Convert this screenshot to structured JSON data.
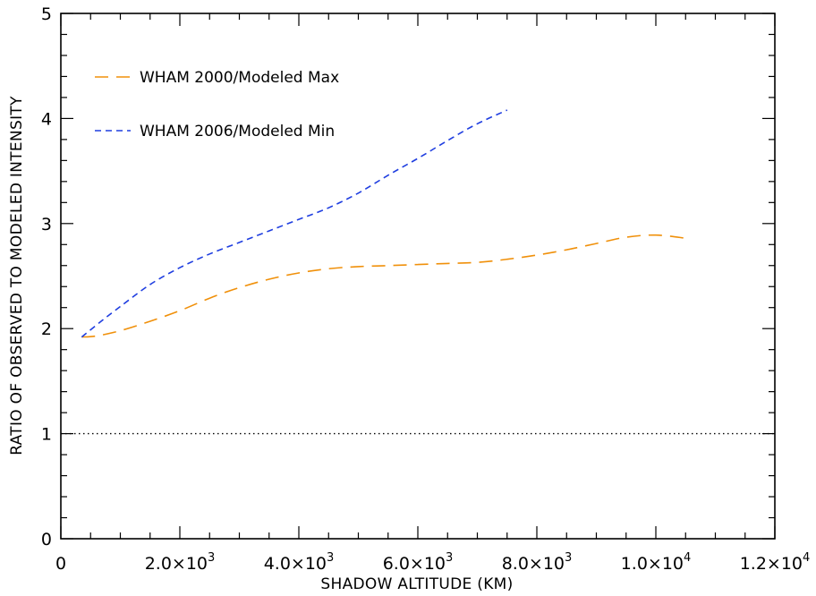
{
  "chart_data": {
    "type": "line",
    "xlabel": "SHADOW ALTITUDE (KM)",
    "ylabel": "RATIO OF OBSERVED TO MODELED INTENSITY",
    "xlim": [
      0,
      12000
    ],
    "ylim": [
      0,
      5
    ],
    "x_ticks": [
      {
        "value": 0,
        "mantissa": "0",
        "exp": ""
      },
      {
        "value": 2000,
        "mantissa": "2.0×10",
        "exp": "3"
      },
      {
        "value": 4000,
        "mantissa": "4.0×10",
        "exp": "3"
      },
      {
        "value": 6000,
        "mantissa": "6.0×10",
        "exp": "3"
      },
      {
        "value": 8000,
        "mantissa": "8.0×10",
        "exp": "3"
      },
      {
        "value": 10000,
        "mantissa": "1.0×10",
        "exp": "4"
      },
      {
        "value": 12000,
        "mantissa": "1.2×10",
        "exp": "4"
      }
    ],
    "y_ticks": [
      {
        "value": 0,
        "label": "0"
      },
      {
        "value": 1,
        "label": "1"
      },
      {
        "value": 2,
        "label": "2"
      },
      {
        "value": 3,
        "label": "3"
      },
      {
        "value": 4,
        "label": "4"
      },
      {
        "value": 5,
        "label": "5"
      }
    ],
    "x_minor_step": 500,
    "y_minor_step": 0.2,
    "reference_line": {
      "y": 1,
      "style": "dotted",
      "color": "#000000"
    },
    "legend_position": "top-left",
    "grid": false,
    "series": [
      {
        "name": "WHAM 2000/Modeled Max",
        "color": "#f0900a",
        "style": "long-dash",
        "x": [
          350,
          600,
          1000,
          1500,
          2000,
          2500,
          3000,
          3500,
          4000,
          4500,
          5000,
          5500,
          6000,
          6500,
          7000,
          7500,
          8000,
          8500,
          9000,
          9500,
          10000,
          10500
        ],
        "y": [
          1.92,
          1.93,
          1.98,
          2.07,
          2.17,
          2.29,
          2.39,
          2.47,
          2.53,
          2.57,
          2.59,
          2.6,
          2.61,
          2.62,
          2.63,
          2.66,
          2.7,
          2.75,
          2.81,
          2.87,
          2.89,
          2.86
        ]
      },
      {
        "name": "WHAM 2006/Modeled Min",
        "color": "#1f3ee0",
        "style": "short-dash",
        "x": [
          350,
          700,
          1000,
          1500,
          2000,
          2500,
          3000,
          3500,
          4000,
          4500,
          5000,
          5500,
          6000,
          6500,
          7000,
          7500
        ],
        "y": [
          1.92,
          2.08,
          2.21,
          2.42,
          2.58,
          2.71,
          2.82,
          2.93,
          3.04,
          3.15,
          3.29,
          3.46,
          3.62,
          3.79,
          3.95,
          4.08
        ]
      }
    ]
  }
}
